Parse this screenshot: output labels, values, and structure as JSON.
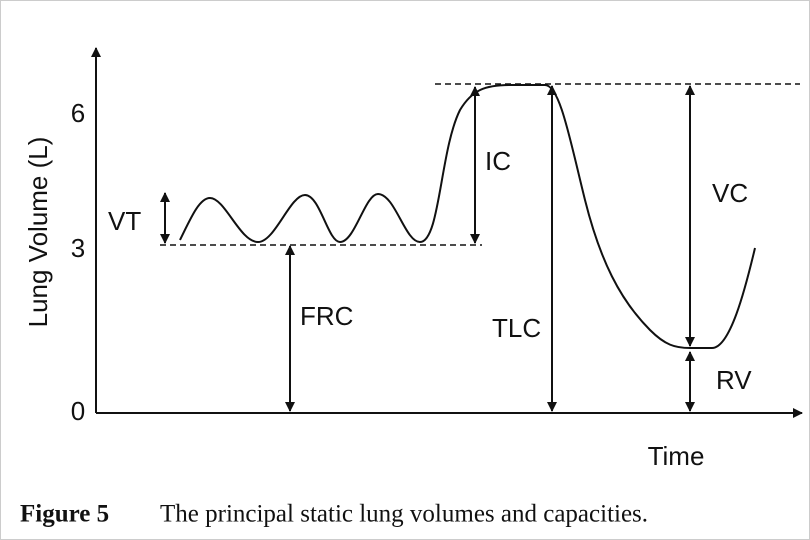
{
  "axis": {
    "y_label": "Lung Volume (L)",
    "x_label": "Time",
    "ticks": [
      0,
      3,
      6
    ]
  },
  "labels": {
    "vt": "VT",
    "ic": "IC",
    "vc": "VC",
    "frc": "FRC",
    "tlc": "TLC",
    "rv": "RV"
  },
  "caption": {
    "number": "Figure 5",
    "text": "The principal static lung volumes and capacities."
  }
}
